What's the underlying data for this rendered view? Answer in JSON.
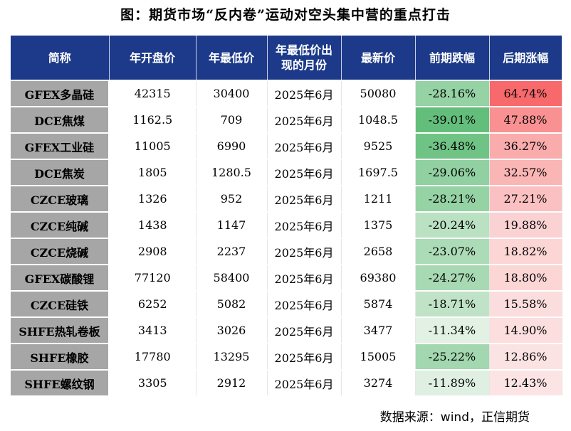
{
  "title": "图：期货市场“反内卷”运动对空头集中营的重点打击",
  "headers": [
    "简称",
    "年开盘价",
    "年最低价",
    "年最低价出现的月份",
    "最新价",
    "前期跌幅",
    "后期涨幅"
  ],
  "rows": [
    {
      "name": "GFEX多晶硅",
      "open": "42315",
      "low": "30400",
      "low_month": "2025年6月",
      "latest": "50080",
      "drop": "-28.16%",
      "rise": "64.74%"
    },
    {
      "name": "DCE焦煤",
      "open": "1162.5",
      "low": "709",
      "low_month": "2025年6月",
      "latest": "1048.5",
      "drop": "-39.01%",
      "rise": "47.88%"
    },
    {
      "name": "GFEX工业硅",
      "open": "11005",
      "low": "6990",
      "low_month": "2025年6月",
      "latest": "9525",
      "drop": "-36.48%",
      "rise": "36.27%"
    },
    {
      "name": "DCE焦炭",
      "open": "1805",
      "low": "1280.5",
      "low_month": "2025年6月",
      "latest": "1697.5",
      "drop": "-29.06%",
      "rise": "32.57%"
    },
    {
      "name": "CZCE玻璃",
      "open": "1326",
      "low": "952",
      "low_month": "2025年6月",
      "latest": "1211",
      "drop": "-28.21%",
      "rise": "27.21%"
    },
    {
      "name": "CZCE纯碱",
      "open": "1438",
      "low": "1147",
      "low_month": "2025年6月",
      "latest": "1375",
      "drop": "-20.24%",
      "rise": "19.88%"
    },
    {
      "name": "CZCE烧碱",
      "open": "2908",
      "low": "2237",
      "low_month": "2025年6月",
      "latest": "2658",
      "drop": "-23.07%",
      "rise": "18.82%"
    },
    {
      "name": "GFEX碳酸锂",
      "open": "77120",
      "low": "58400",
      "low_month": "2025年6月",
      "latest": "69380",
      "drop": "-24.27%",
      "rise": "18.80%"
    },
    {
      "name": "CZCE硅铁",
      "open": "6252",
      "low": "5082",
      "low_month": "2025年6月",
      "latest": "5874",
      "drop": "-18.71%",
      "rise": "15.58%"
    },
    {
      "name": "SHFE热轧卷板",
      "open": "3413",
      "low": "3026",
      "low_month": "2025年6月",
      "latest": "3477",
      "drop": "-11.34%",
      "rise": "14.90%"
    },
    {
      "name": "SHFE橡胶",
      "open": "17780",
      "low": "13295",
      "low_month": "2025年6月",
      "latest": "15005",
      "drop": "-25.22%",
      "rise": "12.86%"
    },
    {
      "name": "SHFE螺纹钢",
      "open": "3305",
      "low": "2912",
      "low_month": "2025年6月",
      "latest": "3274",
      "drop": "-11.89%",
      "rise": "12.43%"
    }
  ],
  "colors": {
    "header_bg": "#1d3a8a",
    "name_bg": "#a6a6a6",
    "drop_scale": [
      "#e2f1e4",
      "#63be7b"
    ],
    "rise_scale": [
      "#fce4e4",
      "#f8696b"
    ]
  },
  "source": "数据来源：wind，正信期货"
}
